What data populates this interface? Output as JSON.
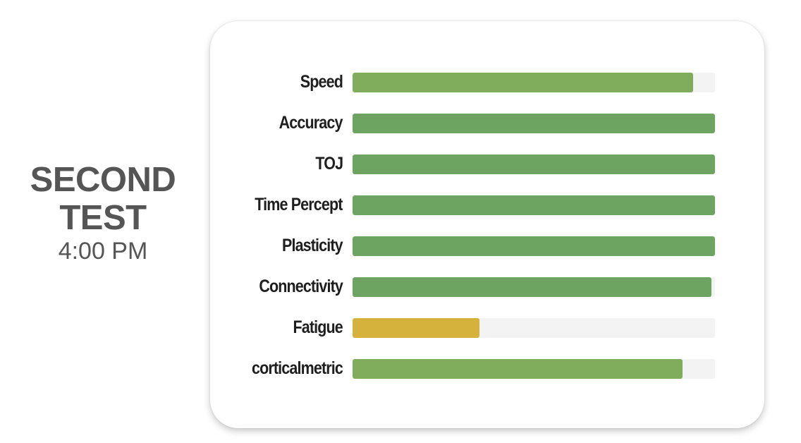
{
  "test": {
    "title": "SECOND\nTEST",
    "time": "4:00 PM"
  },
  "metrics": [
    {
      "label": "Speed",
      "value": 0.94,
      "color": "#7fad5b"
    },
    {
      "label": "Accuracy",
      "value": 1.0,
      "color": "#6ea462"
    },
    {
      "label": "TOJ",
      "value": 1.0,
      "color": "#6ea462"
    },
    {
      "label": "Time Percept",
      "value": 1.0,
      "color": "#6ea462"
    },
    {
      "label": "Plasticity",
      "value": 1.0,
      "color": "#6ea462"
    },
    {
      "label": "Connectivity",
      "value": 0.99,
      "color": "#6ea462"
    },
    {
      "label": "Fatigue",
      "value": 0.35,
      "color": "#d4b23b"
    },
    {
      "label": "corticalmetric",
      "value": 0.91,
      "color": "#7fad5b"
    }
  ]
}
